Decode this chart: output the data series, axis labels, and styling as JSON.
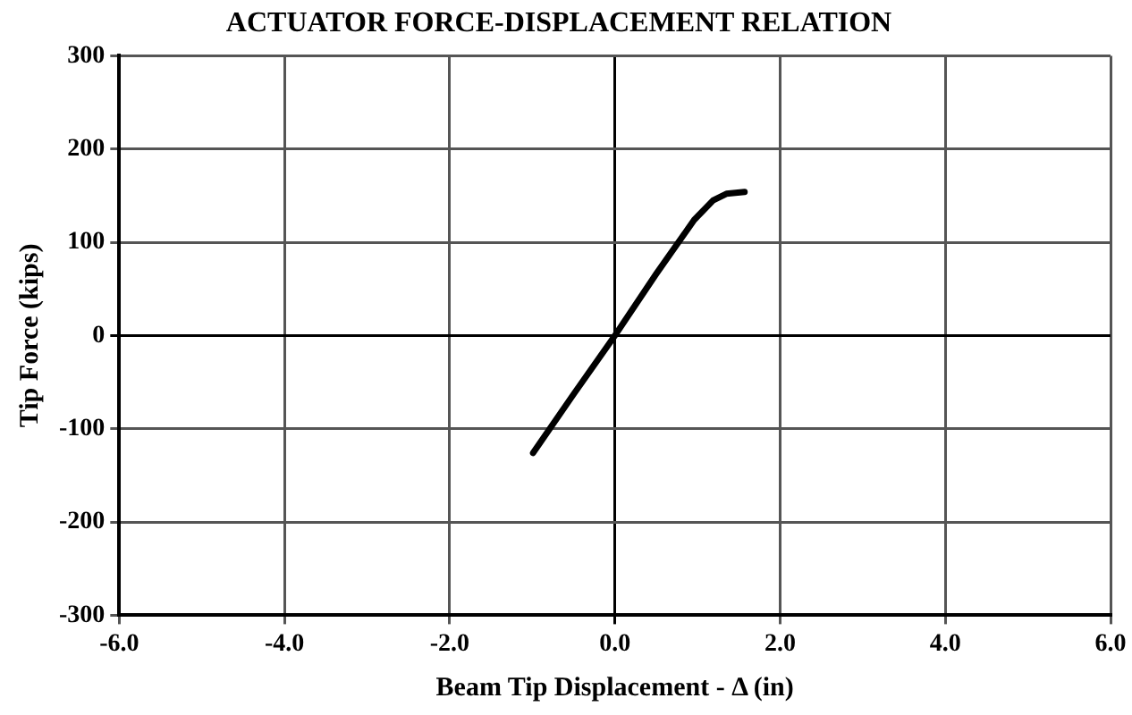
{
  "chart_data": {
    "type": "line",
    "title": "ACTUATOR FORCE-DISPLACEMENT RELATION",
    "xlabel": "Beam Tip Displacement - Δ (in)",
    "ylabel": "Tip Force (kips)",
    "series": [
      {
        "color": "#000000",
        "x": [
          -0.99,
          -0.5,
          0,
          0.5,
          0.77,
          0.96,
          1.19,
          1.35,
          1.57
        ],
        "values": [
          -126,
          -63,
          0,
          66,
          100,
          124,
          145,
          152,
          154
        ]
      }
    ],
    "xlim": [
      -6,
      6
    ],
    "xticks": [
      {
        "value": -6,
        "label": "-6.0"
      },
      {
        "value": -4,
        "label": "-4.0"
      },
      {
        "value": -2,
        "label": "-2.0"
      },
      {
        "value": 0,
        "label": "0.0"
      },
      {
        "value": 2,
        "label": "2.0"
      },
      {
        "value": 4,
        "label": "4.0"
      },
      {
        "value": 6,
        "label": "6.0"
      }
    ],
    "ylim": [
      -300,
      300
    ],
    "yticks": [
      -300,
      -200,
      -100,
      0,
      100,
      200,
      300
    ],
    "grid": true,
    "marker": "none",
    "line_style": "solid"
  }
}
